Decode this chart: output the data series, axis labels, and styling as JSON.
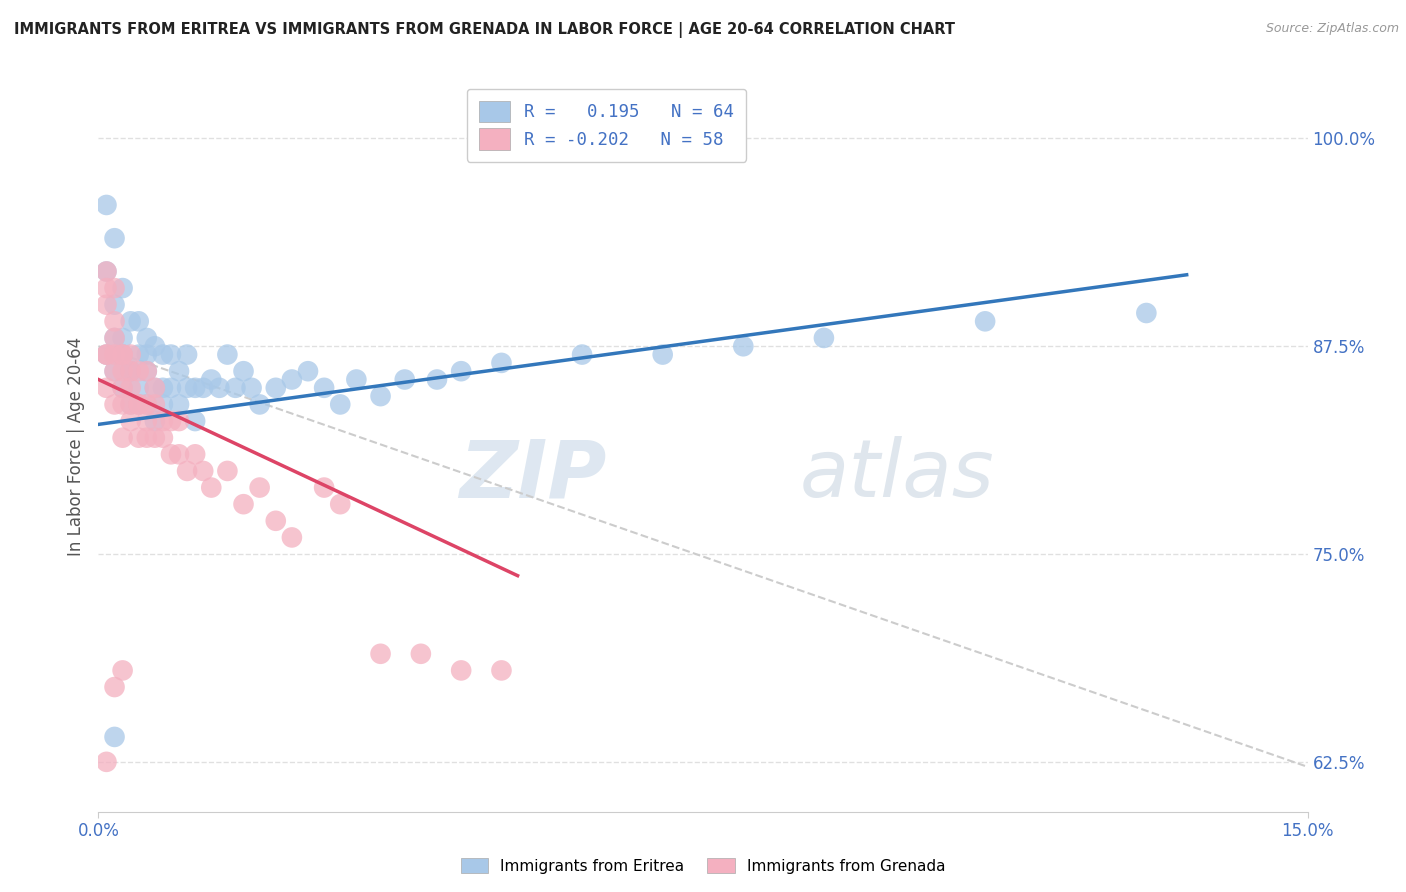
{
  "title": "IMMIGRANTS FROM ERITREA VS IMMIGRANTS FROM GRENADA IN LABOR FORCE | AGE 20-64 CORRELATION CHART",
  "source": "Source: ZipAtlas.com",
  "ylabel": "In Labor Force | Age 20-64",
  "xlim": [
    0.0,
    0.15
  ],
  "ylim": [
    0.595,
    1.035
  ],
  "blue_R": 0.195,
  "blue_N": 64,
  "pink_R": -0.202,
  "pink_N": 58,
  "blue_color": "#a8c8e8",
  "pink_color": "#f4b0c0",
  "blue_line_color": "#3377bb",
  "pink_line_color": "#dd4466",
  "dashed_line_color": "#cccccc",
  "watermark_zip": "ZIP",
  "watermark_atlas": "atlas",
  "legend_label_blue": "Immigrants from Eritrea",
  "legend_label_pink": "Immigrants from Grenada",
  "background_color": "#ffffff",
  "grid_color": "#dddddd",
  "title_color": "#222222",
  "axis_label_color": "#555555",
  "tick_color": "#4472c4",
  "y_tick_vals": [
    0.625,
    0.75,
    0.875,
    1.0
  ],
  "y_tick_labels": [
    "62.5%",
    "75.0%",
    "87.5%",
    "100.0%"
  ],
  "blue_trend_x": [
    0.0,
    0.135
  ],
  "blue_trend_y": [
    0.828,
    0.918
  ],
  "pink_trend_x": [
    0.0,
    0.052
  ],
  "pink_trend_y": [
    0.855,
    0.737
  ],
  "dashed_trend_x": [
    0.0,
    0.15
  ],
  "dashed_trend_y": [
    0.875,
    0.622
  ],
  "blue_scatter_x": [
    0.001,
    0.001,
    0.001,
    0.002,
    0.002,
    0.002,
    0.002,
    0.003,
    0.003,
    0.003,
    0.003,
    0.003,
    0.004,
    0.004,
    0.004,
    0.004,
    0.005,
    0.005,
    0.005,
    0.005,
    0.006,
    0.006,
    0.006,
    0.006,
    0.007,
    0.007,
    0.007,
    0.008,
    0.008,
    0.008,
    0.009,
    0.009,
    0.01,
    0.01,
    0.011,
    0.011,
    0.012,
    0.012,
    0.013,
    0.014,
    0.015,
    0.016,
    0.017,
    0.018,
    0.019,
    0.02,
    0.022,
    0.024,
    0.026,
    0.028,
    0.03,
    0.032,
    0.035,
    0.038,
    0.042,
    0.045,
    0.05,
    0.06,
    0.07,
    0.08,
    0.09,
    0.11,
    0.13,
    0.002
  ],
  "blue_scatter_y": [
    0.87,
    0.92,
    0.96,
    0.88,
    0.9,
    0.94,
    0.86,
    0.87,
    0.91,
    0.87,
    0.85,
    0.88,
    0.86,
    0.89,
    0.84,
    0.86,
    0.85,
    0.87,
    0.89,
    0.84,
    0.86,
    0.88,
    0.84,
    0.87,
    0.85,
    0.875,
    0.83,
    0.85,
    0.87,
    0.84,
    0.85,
    0.87,
    0.84,
    0.86,
    0.85,
    0.87,
    0.85,
    0.83,
    0.85,
    0.855,
    0.85,
    0.87,
    0.85,
    0.86,
    0.85,
    0.84,
    0.85,
    0.855,
    0.86,
    0.85,
    0.84,
    0.855,
    0.845,
    0.855,
    0.855,
    0.86,
    0.865,
    0.87,
    0.87,
    0.875,
    0.88,
    0.89,
    0.895,
    0.64
  ],
  "pink_scatter_x": [
    0.001,
    0.001,
    0.001,
    0.001,
    0.001,
    0.001,
    0.002,
    0.002,
    0.002,
    0.002,
    0.002,
    0.002,
    0.003,
    0.003,
    0.003,
    0.003,
    0.003,
    0.003,
    0.004,
    0.004,
    0.004,
    0.004,
    0.004,
    0.005,
    0.005,
    0.005,
    0.005,
    0.006,
    0.006,
    0.006,
    0.006,
    0.007,
    0.007,
    0.007,
    0.008,
    0.008,
    0.009,
    0.009,
    0.01,
    0.01,
    0.011,
    0.012,
    0.013,
    0.014,
    0.016,
    0.018,
    0.02,
    0.022,
    0.024,
    0.028,
    0.03,
    0.035,
    0.04,
    0.045,
    0.05,
    0.001,
    0.002,
    0.003
  ],
  "pink_scatter_y": [
    0.92,
    0.9,
    0.87,
    0.85,
    0.87,
    0.91,
    0.87,
    0.88,
    0.91,
    0.86,
    0.84,
    0.89,
    0.87,
    0.84,
    0.87,
    0.85,
    0.86,
    0.82,
    0.84,
    0.86,
    0.83,
    0.85,
    0.87,
    0.84,
    0.86,
    0.82,
    0.84,
    0.83,
    0.82,
    0.84,
    0.86,
    0.84,
    0.82,
    0.85,
    0.83,
    0.82,
    0.81,
    0.83,
    0.81,
    0.83,
    0.8,
    0.81,
    0.8,
    0.79,
    0.8,
    0.78,
    0.79,
    0.77,
    0.76,
    0.79,
    0.78,
    0.69,
    0.69,
    0.68,
    0.68,
    0.625,
    0.67,
    0.68
  ]
}
